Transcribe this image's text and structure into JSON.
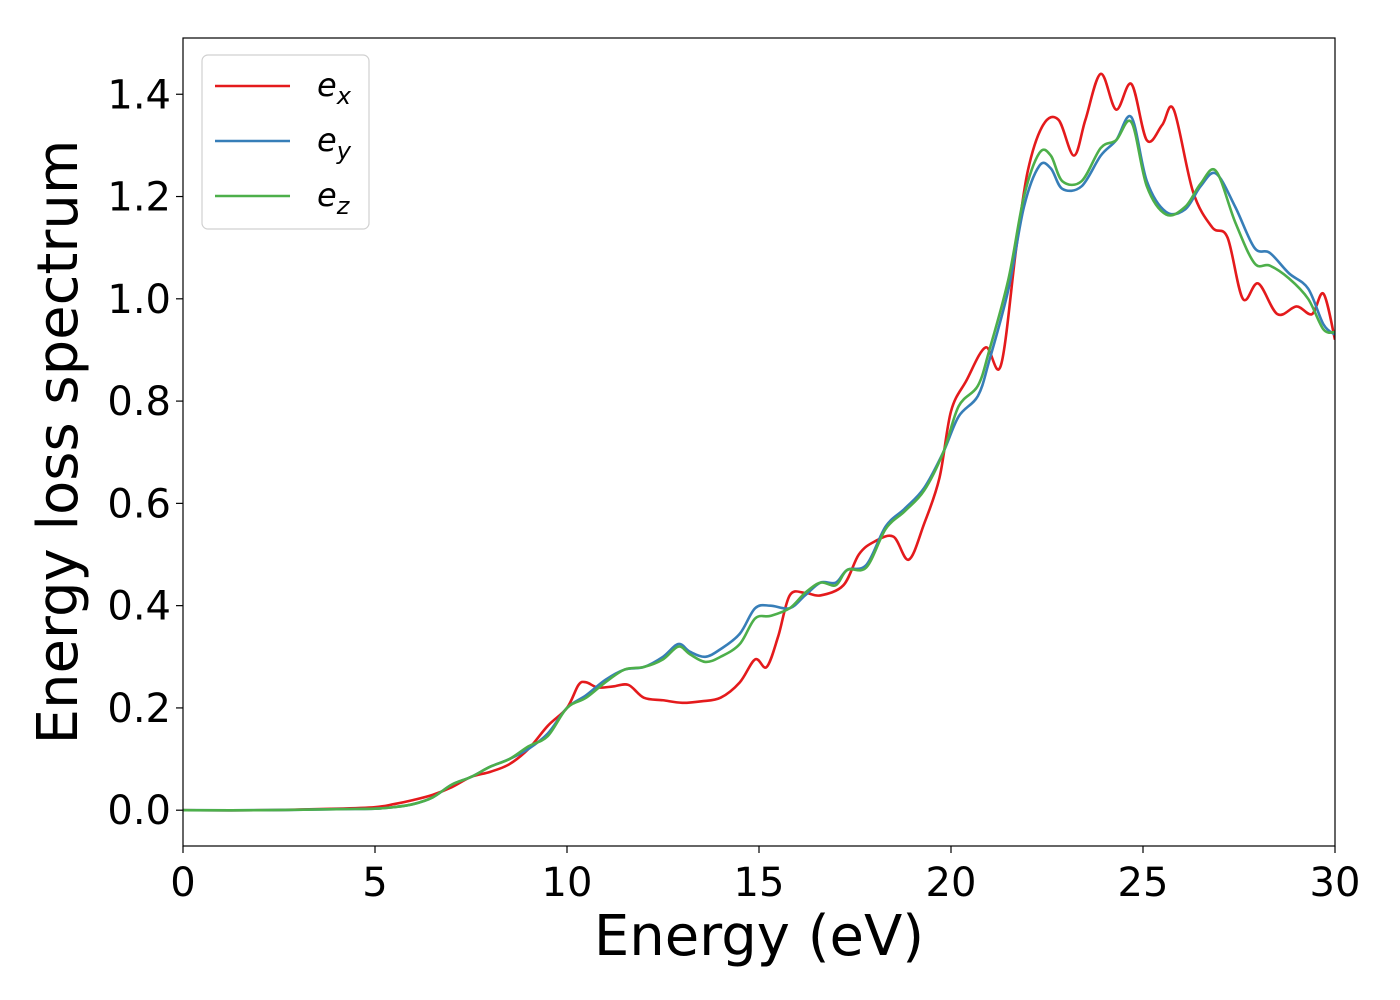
{
  "chart_data": {
    "type": "line",
    "title": "",
    "xlabel": "Energy (eV)",
    "ylabel": "Energy loss spectrum",
    "xlim": [
      0,
      30
    ],
    "ylim": [
      -0.07,
      1.51
    ],
    "xticks": [
      0,
      5,
      10,
      15,
      20,
      25,
      30
    ],
    "xtick_labels": [
      "0",
      "5",
      "10",
      "15",
      "20",
      "25",
      "30"
    ],
    "yticks": [
      0.0,
      0.2,
      0.4,
      0.6,
      0.8,
      1.0,
      1.2,
      1.4
    ],
    "ytick_labels": [
      "0.0",
      "0.2",
      "0.4",
      "0.6",
      "0.8",
      "1.0",
      "1.2",
      "1.4"
    ],
    "grid": false,
    "legend_position": "top-left",
    "series": [
      {
        "name": "e_x",
        "label_base": "e",
        "label_sub": "x",
        "color": "#e41a1c",
        "points": [
          [
            0,
            0.0
          ],
          [
            2,
            0.0
          ],
          [
            4,
            0.003
          ],
          [
            5,
            0.006
          ],
          [
            5.5,
            0.012
          ],
          [
            6,
            0.02
          ],
          [
            6.5,
            0.03
          ],
          [
            7,
            0.045
          ],
          [
            7.5,
            0.065
          ],
          [
            8,
            0.075
          ],
          [
            8.5,
            0.09
          ],
          [
            9,
            0.12
          ],
          [
            9.5,
            0.165
          ],
          [
            10,
            0.2
          ],
          [
            10.3,
            0.245
          ],
          [
            10.5,
            0.25
          ],
          [
            10.8,
            0.24
          ],
          [
            11.2,
            0.242
          ],
          [
            11.6,
            0.245
          ],
          [
            12,
            0.22
          ],
          [
            12.5,
            0.215
          ],
          [
            13,
            0.21
          ],
          [
            13.5,
            0.213
          ],
          [
            14,
            0.22
          ],
          [
            14.5,
            0.25
          ],
          [
            14.9,
            0.295
          ],
          [
            15.2,
            0.28
          ],
          [
            15.5,
            0.34
          ],
          [
            15.8,
            0.42
          ],
          [
            16.2,
            0.425
          ],
          [
            16.6,
            0.42
          ],
          [
            17.2,
            0.44
          ],
          [
            17.6,
            0.5
          ],
          [
            18,
            0.525
          ],
          [
            18.5,
            0.535
          ],
          [
            18.9,
            0.49
          ],
          [
            19.3,
            0.56
          ],
          [
            19.7,
            0.65
          ],
          [
            20,
            0.78
          ],
          [
            20.4,
            0.84
          ],
          [
            20.9,
            0.905
          ],
          [
            21.3,
            0.87
          ],
          [
            21.7,
            1.1
          ],
          [
            22,
            1.25
          ],
          [
            22.4,
            1.34
          ],
          [
            22.8,
            1.35
          ],
          [
            23.2,
            1.28
          ],
          [
            23.5,
            1.35
          ],
          [
            23.9,
            1.44
          ],
          [
            24.3,
            1.37
          ],
          [
            24.7,
            1.42
          ],
          [
            25.1,
            1.31
          ],
          [
            25.5,
            1.34
          ],
          [
            25.8,
            1.37
          ],
          [
            26.3,
            1.21
          ],
          [
            26.8,
            1.14
          ],
          [
            27.2,
            1.12
          ],
          [
            27.6,
            1.0
          ],
          [
            28,
            1.03
          ],
          [
            28.5,
            0.97
          ],
          [
            29,
            0.985
          ],
          [
            29.4,
            0.97
          ],
          [
            29.7,
            1.01
          ],
          [
            30,
            0.92
          ]
        ]
      },
      {
        "name": "e_y",
        "label_base": "e",
        "label_sub": "y",
        "color": "#377eb8",
        "points": [
          [
            0,
            0.0
          ],
          [
            2,
            0.0
          ],
          [
            4,
            0.002
          ],
          [
            5,
            0.003
          ],
          [
            5.5,
            0.006
          ],
          [
            6,
            0.012
          ],
          [
            6.5,
            0.025
          ],
          [
            7,
            0.05
          ],
          [
            7.5,
            0.065
          ],
          [
            8,
            0.085
          ],
          [
            8.5,
            0.1
          ],
          [
            9,
            0.12
          ],
          [
            9.5,
            0.15
          ],
          [
            10,
            0.2
          ],
          [
            10.5,
            0.225
          ],
          [
            11,
            0.255
          ],
          [
            11.5,
            0.275
          ],
          [
            12,
            0.28
          ],
          [
            12.5,
            0.3
          ],
          [
            12.9,
            0.325
          ],
          [
            13.2,
            0.31
          ],
          [
            13.6,
            0.3
          ],
          [
            14,
            0.315
          ],
          [
            14.5,
            0.345
          ],
          [
            14.9,
            0.395
          ],
          [
            15.3,
            0.4
          ],
          [
            15.8,
            0.395
          ],
          [
            16.2,
            0.42
          ],
          [
            16.6,
            0.445
          ],
          [
            17,
            0.445
          ],
          [
            17.3,
            0.47
          ],
          [
            17.8,
            0.48
          ],
          [
            18.3,
            0.555
          ],
          [
            18.8,
            0.59
          ],
          [
            19.3,
            0.63
          ],
          [
            19.8,
            0.7
          ],
          [
            20.2,
            0.77
          ],
          [
            20.7,
            0.81
          ],
          [
            21,
            0.88
          ],
          [
            21.5,
            1.02
          ],
          [
            21.9,
            1.18
          ],
          [
            22.3,
            1.26
          ],
          [
            22.6,
            1.255
          ],
          [
            22.9,
            1.215
          ],
          [
            23.4,
            1.22
          ],
          [
            23.9,
            1.28
          ],
          [
            24.3,
            1.31
          ],
          [
            24.7,
            1.355
          ],
          [
            25.1,
            1.23
          ],
          [
            25.6,
            1.17
          ],
          [
            26.1,
            1.175
          ],
          [
            26.5,
            1.22
          ],
          [
            26.9,
            1.245
          ],
          [
            27.4,
            1.18
          ],
          [
            27.9,
            1.1
          ],
          [
            28.3,
            1.09
          ],
          [
            28.8,
            1.05
          ],
          [
            29.3,
            1.02
          ],
          [
            29.7,
            0.95
          ],
          [
            30,
            0.93
          ]
        ]
      },
      {
        "name": "e_z",
        "label_base": "e",
        "label_sub": "z",
        "color": "#4daf4a",
        "points": [
          [
            0,
            0.0
          ],
          [
            2,
            0.0
          ],
          [
            4,
            0.002
          ],
          [
            5,
            0.003
          ],
          [
            5.5,
            0.006
          ],
          [
            6,
            0.012
          ],
          [
            6.5,
            0.025
          ],
          [
            7,
            0.05
          ],
          [
            7.5,
            0.065
          ],
          [
            8,
            0.085
          ],
          [
            8.5,
            0.1
          ],
          [
            9,
            0.125
          ],
          [
            9.5,
            0.145
          ],
          [
            10,
            0.2
          ],
          [
            10.5,
            0.22
          ],
          [
            11,
            0.25
          ],
          [
            11.5,
            0.275
          ],
          [
            12,
            0.28
          ],
          [
            12.5,
            0.295
          ],
          [
            12.9,
            0.32
          ],
          [
            13.2,
            0.305
          ],
          [
            13.6,
            0.29
          ],
          [
            14,
            0.3
          ],
          [
            14.5,
            0.325
          ],
          [
            14.9,
            0.375
          ],
          [
            15.3,
            0.38
          ],
          [
            15.8,
            0.395
          ],
          [
            16.2,
            0.425
          ],
          [
            16.6,
            0.445
          ],
          [
            17,
            0.44
          ],
          [
            17.3,
            0.47
          ],
          [
            17.8,
            0.475
          ],
          [
            18.3,
            0.55
          ],
          [
            18.8,
            0.585
          ],
          [
            19.3,
            0.625
          ],
          [
            19.8,
            0.7
          ],
          [
            20.2,
            0.79
          ],
          [
            20.7,
            0.83
          ],
          [
            21,
            0.9
          ],
          [
            21.5,
            1.04
          ],
          [
            21.9,
            1.2
          ],
          [
            22.3,
            1.285
          ],
          [
            22.6,
            1.28
          ],
          [
            22.9,
            1.23
          ],
          [
            23.4,
            1.23
          ],
          [
            23.9,
            1.295
          ],
          [
            24.3,
            1.31
          ],
          [
            24.7,
            1.345
          ],
          [
            25.1,
            1.22
          ],
          [
            25.6,
            1.165
          ],
          [
            26.1,
            1.18
          ],
          [
            26.5,
            1.225
          ],
          [
            26.9,
            1.25
          ],
          [
            27.4,
            1.15
          ],
          [
            27.9,
            1.07
          ],
          [
            28.3,
            1.065
          ],
          [
            28.8,
            1.04
          ],
          [
            29.3,
            1.0
          ],
          [
            29.7,
            0.94
          ],
          [
            30,
            0.935
          ]
        ]
      }
    ]
  }
}
